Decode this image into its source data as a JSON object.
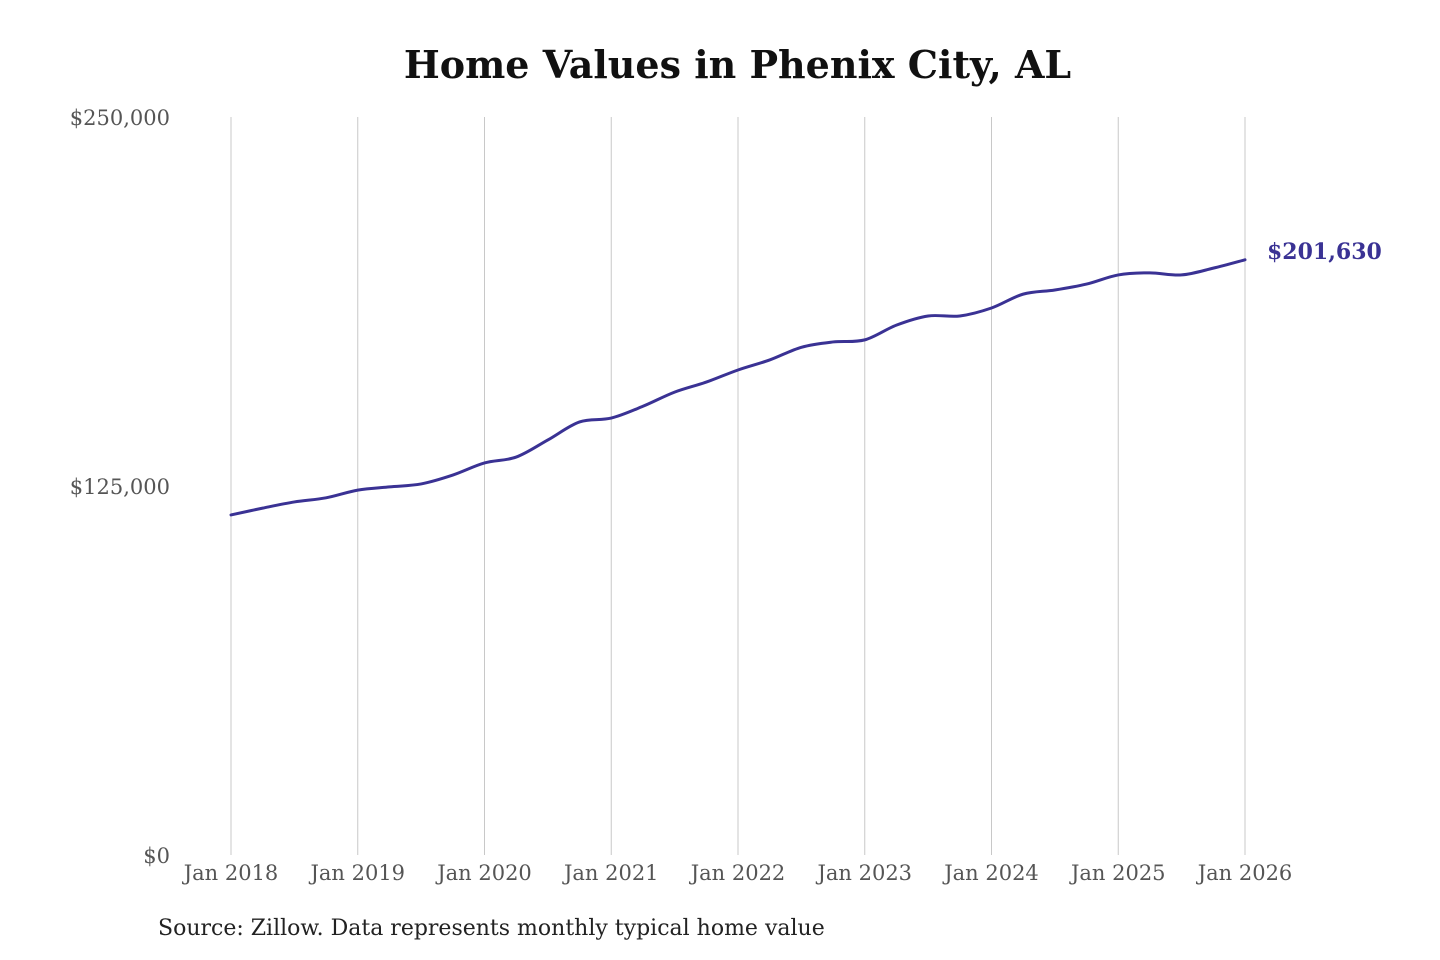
{
  "chart_data": {
    "type": "line",
    "title": "Home Values in Phenix City, AL",
    "source": "Source: Zillow. Data represents monthly typical home value",
    "xlabel": "",
    "ylabel": "",
    "ylim": [
      0,
      250000
    ],
    "xlim": [
      2018,
      2026
    ],
    "y_ticks": [
      {
        "value": 0,
        "label": "$0"
      },
      {
        "value": 125000,
        "label": "$125,000"
      },
      {
        "value": 250000,
        "label": "$250,000"
      }
    ],
    "x_ticks": [
      {
        "value": 2018,
        "label": "Jan 2018"
      },
      {
        "value": 2019,
        "label": "Jan 2019"
      },
      {
        "value": 2020,
        "label": "Jan 2020"
      },
      {
        "value": 2021,
        "label": "Jan 2021"
      },
      {
        "value": 2022,
        "label": "Jan 2022"
      },
      {
        "value": 2023,
        "label": "Jan 2023"
      },
      {
        "value": 2024,
        "label": "Jan 2024"
      },
      {
        "value": 2025,
        "label": "Jan 2025"
      },
      {
        "value": 2026,
        "label": "Jan 2026"
      }
    ],
    "grid": "vertical",
    "series": [
      {
        "name": "Typical home value",
        "color": "#3a3294",
        "end_label": "$201,630",
        "x": [
          2018,
          2018.25,
          2018.5,
          2018.75,
          2019,
          2019.25,
          2019.5,
          2019.75,
          2020,
          2020.25,
          2020.5,
          2020.75,
          2021,
          2021.25,
          2021.5,
          2021.75,
          2022,
          2022.25,
          2022.5,
          2022.75,
          2023,
          2023.25,
          2023.5,
          2023.75,
          2024,
          2024.25,
          2024.5,
          2024.75,
          2025,
          2025.25,
          2025.5,
          2025.75,
          2026
        ],
        "values": [
          115200,
          117500,
          119600,
          121000,
          123600,
          124700,
          125700,
          128700,
          132800,
          134800,
          140600,
          146700,
          148000,
          152000,
          156800,
          160200,
          164300,
          167700,
          172000,
          173800,
          174500,
          179500,
          182600,
          182600,
          185300,
          190000,
          191400,
          193400,
          196500,
          197200,
          196500,
          198800,
          201630
        ]
      }
    ]
  }
}
